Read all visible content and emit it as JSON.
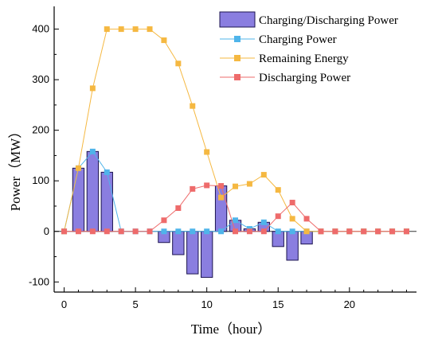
{
  "chart_data": {
    "type": "bar+line",
    "xlabel": "Time（hour）",
    "ylabel": "Power（MW）",
    "xlim": [
      -0.7,
      24.7
    ],
    "ylim": [
      -120,
      445
    ],
    "x_ticks": [
      0,
      5,
      10,
      15,
      20
    ],
    "y_ticks": [
      -100,
      0,
      100,
      200,
      300,
      400
    ],
    "grid": false,
    "legend_position": "top-right",
    "colors": {
      "bar_fill": "#8a7ee0",
      "bar_stroke": "#1c1450",
      "charging": "#4fb4ea",
      "remaining": "#f5b841",
      "discharging": "#ee6b6b"
    },
    "bars": {
      "name": "Charging/Discharging Power",
      "x": [
        1,
        2,
        3,
        7,
        8,
        9,
        10,
        11,
        12,
        13,
        14,
        15,
        16,
        17
      ],
      "values": [
        125,
        158,
        117,
        -22,
        -46,
        -84,
        -91,
        90,
        22,
        5,
        18,
        -30,
        -57,
        -25
      ]
    },
    "series": [
      {
        "name": "Charging Power",
        "x": [
          0,
          1,
          2,
          3,
          4,
          5,
          6,
          7,
          8,
          9,
          10,
          11,
          12,
          13,
          14,
          15,
          16,
          17,
          18,
          19,
          20,
          21,
          22,
          23,
          24
        ],
        "values": [
          0,
          125,
          158,
          117,
          0,
          0,
          0,
          0,
          0,
          0,
          0,
          0,
          22,
          5,
          18,
          0,
          0,
          0,
          0,
          0,
          0,
          0,
          0,
          0,
          0
        ]
      },
      {
        "name": "Remaining Energy",
        "x": [
          0,
          1,
          2,
          3,
          4,
          5,
          6,
          7,
          8,
          9,
          10,
          11,
          12,
          13,
          14,
          15,
          16,
          17,
          18,
          19,
          20,
          21,
          22,
          23,
          24
        ],
        "values": [
          0,
          125,
          283,
          400,
          400,
          400,
          400,
          378,
          332,
          248,
          157,
          67,
          89,
          94,
          112,
          82,
          25,
          0,
          0,
          0,
          0,
          0,
          0,
          0,
          0
        ]
      },
      {
        "name": "Discharging Power",
        "x": [
          0,
          1,
          2,
          3,
          4,
          5,
          6,
          7,
          8,
          9,
          10,
          11,
          12,
          13,
          14,
          15,
          16,
          17,
          18,
          19,
          20,
          21,
          22,
          23,
          24
        ],
        "values": [
          0,
          0,
          0,
          0,
          0,
          0,
          0,
          22,
          46,
          84,
          91,
          90,
          0,
          0,
          0,
          30,
          57,
          25,
          0,
          0,
          0,
          0,
          0,
          0,
          0
        ]
      }
    ]
  }
}
